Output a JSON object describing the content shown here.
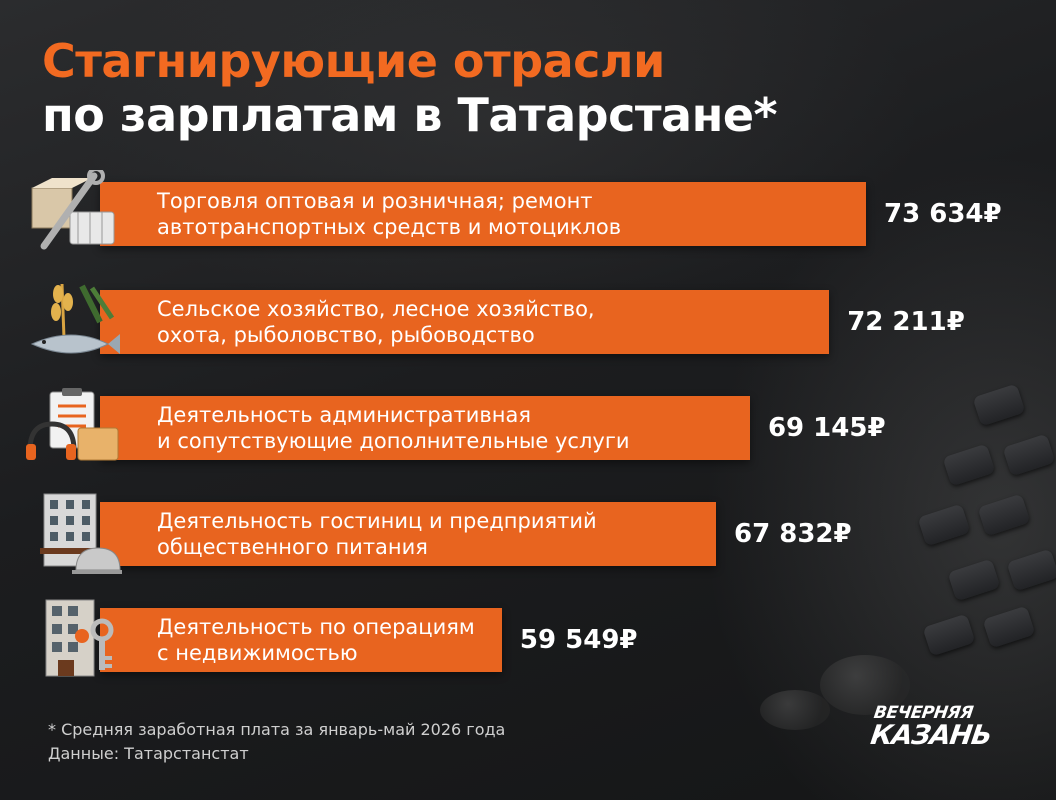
{
  "header": {
    "title_line1": "Стагнирующие отрасли",
    "title_line2": "по зарплатам в Татарстане*"
  },
  "chart_data": {
    "type": "bar",
    "orientation": "horizontal",
    "categories": [
      [
        "Торговля оптовая и розничная; ремонт",
        "автотранспортных средств и мотоциклов"
      ],
      [
        "Сельское хозяйство, лесное хозяйство,",
        "охота, рыболовство, рыбоводство"
      ],
      [
        "Деятельность административная",
        "и сопутствующие дополнительные услуги"
      ],
      [
        "Деятельность гостиниц и предприятий",
        "общественного питания"
      ],
      [
        "Деятельность по операциям",
        "с недвижимостью"
      ]
    ],
    "values": [
      73634,
      72211,
      69145,
      67832,
      59549
    ],
    "value_labels": [
      "73 634₽",
      "72 211₽",
      "69 145₽",
      "67 832₽",
      "59 549₽"
    ],
    "icons": [
      "box-wrench-basket-icon",
      "wheat-fish-icon",
      "clipboard-headset-icon",
      "hotel-cloche-icon",
      "building-key-icon"
    ],
    "bar_color": "#e8641f"
  },
  "footer": {
    "note": "* Средняя заработная плата за январь-май 2026 года",
    "source": "Данные: Татарстанстат"
  },
  "logo": {
    "line1": "ВЕЧЕРНЯЯ",
    "line2": "КАЗАНЬ"
  },
  "colors": {
    "accent": "#f26a21",
    "background": "#1e1f21",
    "text": "#ffffff"
  }
}
